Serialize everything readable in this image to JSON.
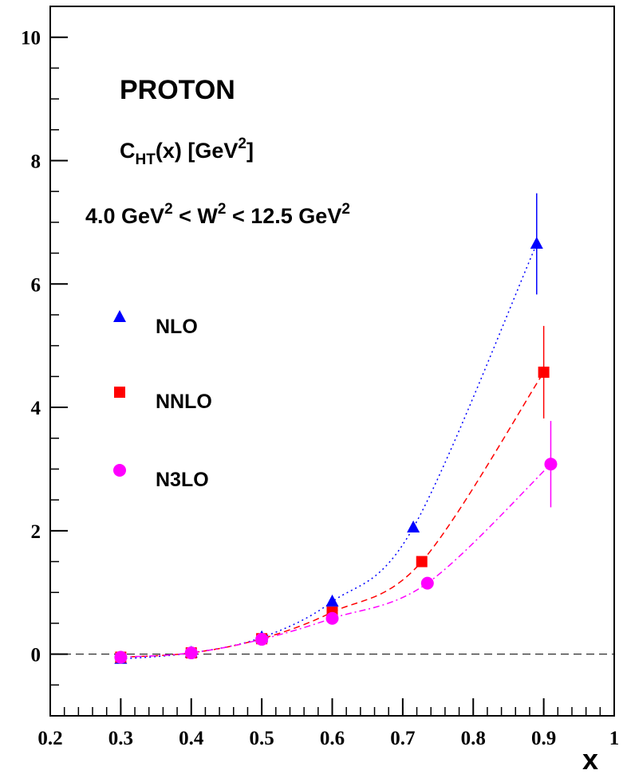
{
  "chart_data": {
    "type": "scatter",
    "title": "PROTON",
    "annotations": [
      [
        {
          "text": "C"
        },
        {
          "text": "HT",
          "shift": "sub"
        },
        {
          "text": "(x) [GeV"
        },
        {
          "text": "2",
          "shift": "sup"
        },
        {
          "text": "]"
        }
      ],
      [
        {
          "text": "4.0 GeV"
        },
        {
          "text": "2",
          "shift": "sup"
        },
        {
          "text": " < W"
        },
        {
          "text": "2",
          "shift": "sup"
        },
        {
          "text": " < 12.5 GeV"
        },
        {
          "text": "2",
          "shift": "sup"
        }
      ]
    ],
    "x_label": "x",
    "xlim": [
      0.2,
      1
    ],
    "xticks": [
      0.2,
      0.3,
      0.4,
      0.5,
      0.6,
      0.7,
      0.8,
      0.9,
      1
    ],
    "ylim": [
      -1,
      10.5
    ],
    "yticks": [
      0,
      2,
      4,
      6,
      8,
      10
    ],
    "reference_line": 0,
    "series": [
      {
        "name": "NLO",
        "color": "#0000ff",
        "marker": "triangle",
        "line": "dotted",
        "x": [
          0.3,
          0.4,
          0.5,
          0.6,
          0.715,
          0.89
        ],
        "values": [
          -0.08,
          0.02,
          0.27,
          0.85,
          2.05,
          6.65
        ],
        "errors": [
          null,
          null,
          null,
          null,
          null,
          0.82
        ]
      },
      {
        "name": "NNLO",
        "color": "#ff0000",
        "marker": "square",
        "line": "dashed",
        "x": [
          0.3,
          0.4,
          0.5,
          0.6,
          0.727,
          0.9
        ],
        "values": [
          -0.05,
          0.02,
          0.25,
          0.68,
          1.5,
          4.57
        ],
        "errors": [
          null,
          null,
          null,
          null,
          null,
          0.75
        ]
      },
      {
        "name": "N3LO",
        "color": "#ff00ff",
        "marker": "circle",
        "line": "dashdot",
        "x": [
          0.3,
          0.4,
          0.5,
          0.6,
          0.735,
          0.91
        ],
        "values": [
          -0.05,
          0.02,
          0.24,
          0.58,
          1.15,
          3.08
        ],
        "errors": [
          null,
          null,
          null,
          null,
          null,
          0.7
        ]
      }
    ]
  }
}
